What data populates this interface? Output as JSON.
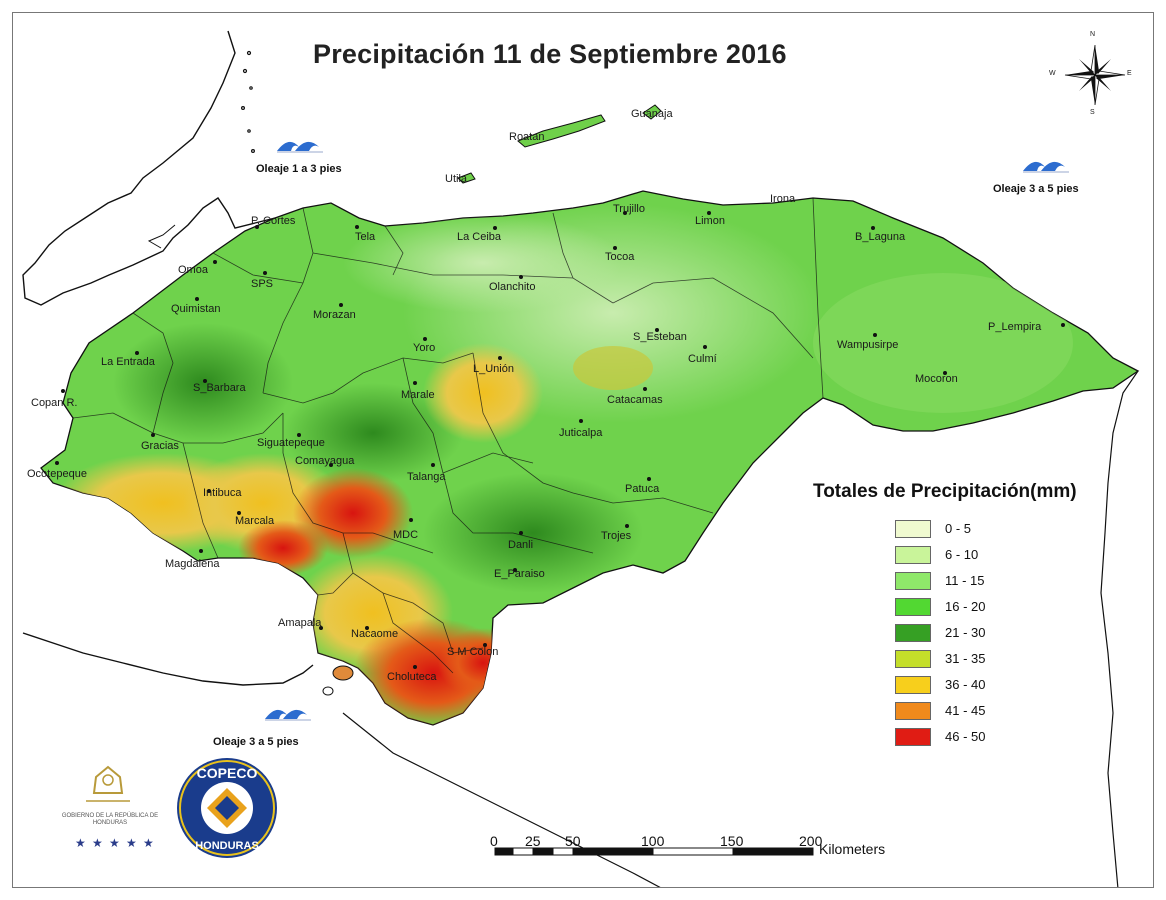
{
  "title": "Precipitación 11 de Septiembre 2016",
  "legend": {
    "title": "Totales de Precipitación(mm)",
    "items": [
      {
        "label": "0 - 5",
        "color": "#f0fad0"
      },
      {
        "label": "6 - 10",
        "color": "#c9f49a"
      },
      {
        "label": "11 - 15",
        "color": "#8fe86a"
      },
      {
        "label": "16 - 20",
        "color": "#52d832"
      },
      {
        "label": "21 - 30",
        "color": "#36a024"
      },
      {
        "label": "31 - 35",
        "color": "#c4de2a"
      },
      {
        "label": "36 - 40",
        "color": "#f7cf1c"
      },
      {
        "label": "41 - 45",
        "color": "#f08a1c"
      },
      {
        "label": "46 - 50",
        "color": "#e01c14"
      }
    ]
  },
  "surf": {
    "north_west": "Oleaje 1 a 3 pies",
    "north_east": "Oleaje 3 a 5 pies",
    "south": "Oleaje 3 a 5 pies"
  },
  "places": {
    "roatan": "Roatan",
    "guanaja": "Guanaja",
    "utila": "Utila",
    "p_cortes": "P. Cortes",
    "tela": "Tela",
    "la_ceiba": "La Ceiba",
    "trujillo": "Trujillo",
    "limon": "Limon",
    "irona": "Irona",
    "b_laguna": "B_Laguna",
    "omoa": "Omoa",
    "sps": "SPS",
    "olanchito": "Olanchito",
    "tocoa": "Tocoa",
    "quimistan": "Quimistan",
    "morazan": "Morazan",
    "la_entrada": "La Entrada",
    "yoro": "Yoro",
    "s_esteban": "S_Esteban",
    "culmi": "Culmí",
    "wampusirpe": "Wampusirpe",
    "p_lempira": "P_Lempira",
    "s_barbara": "S_Barbara",
    "l_union": "L_Unión",
    "marale": "Marale",
    "copan_r": "Copan R.",
    "catacamas": "Catacamas",
    "mocoron": "Mocoron",
    "gracias": "Gracias",
    "siguatepeque": "Siguatepeque",
    "juticalpa": "Juticalpa",
    "ocotepeque": "Ocotepeque",
    "comayagua": "Comayagua",
    "talanga": "Talanga",
    "patuca": "Patuca",
    "intibuca": "Intibuca",
    "marcala": "Marcala",
    "mdc": "MDC",
    "trojes": "Trojes",
    "danli": "Danli",
    "magdalena": "Magdalena",
    "e_paraiso": "E_Paraiso",
    "amapala": "Amapala",
    "nacaome": "Nacaome",
    "s_m_colon": "S M Colon",
    "choluteca": "Choluteca"
  },
  "scale": {
    "ticks": [
      "0",
      "25",
      "50",
      "100",
      "150",
      "200"
    ],
    "unit": "Kilometers"
  },
  "compass": {
    "n": "N",
    "s": "S",
    "e": "E",
    "w": "W"
  },
  "logos": {
    "gobierno": "GOBIERNO DE LA REPÚBLICA DE HONDURAS",
    "copeco_top": "COPECO",
    "copeco_bottom": "HONDURAS"
  }
}
